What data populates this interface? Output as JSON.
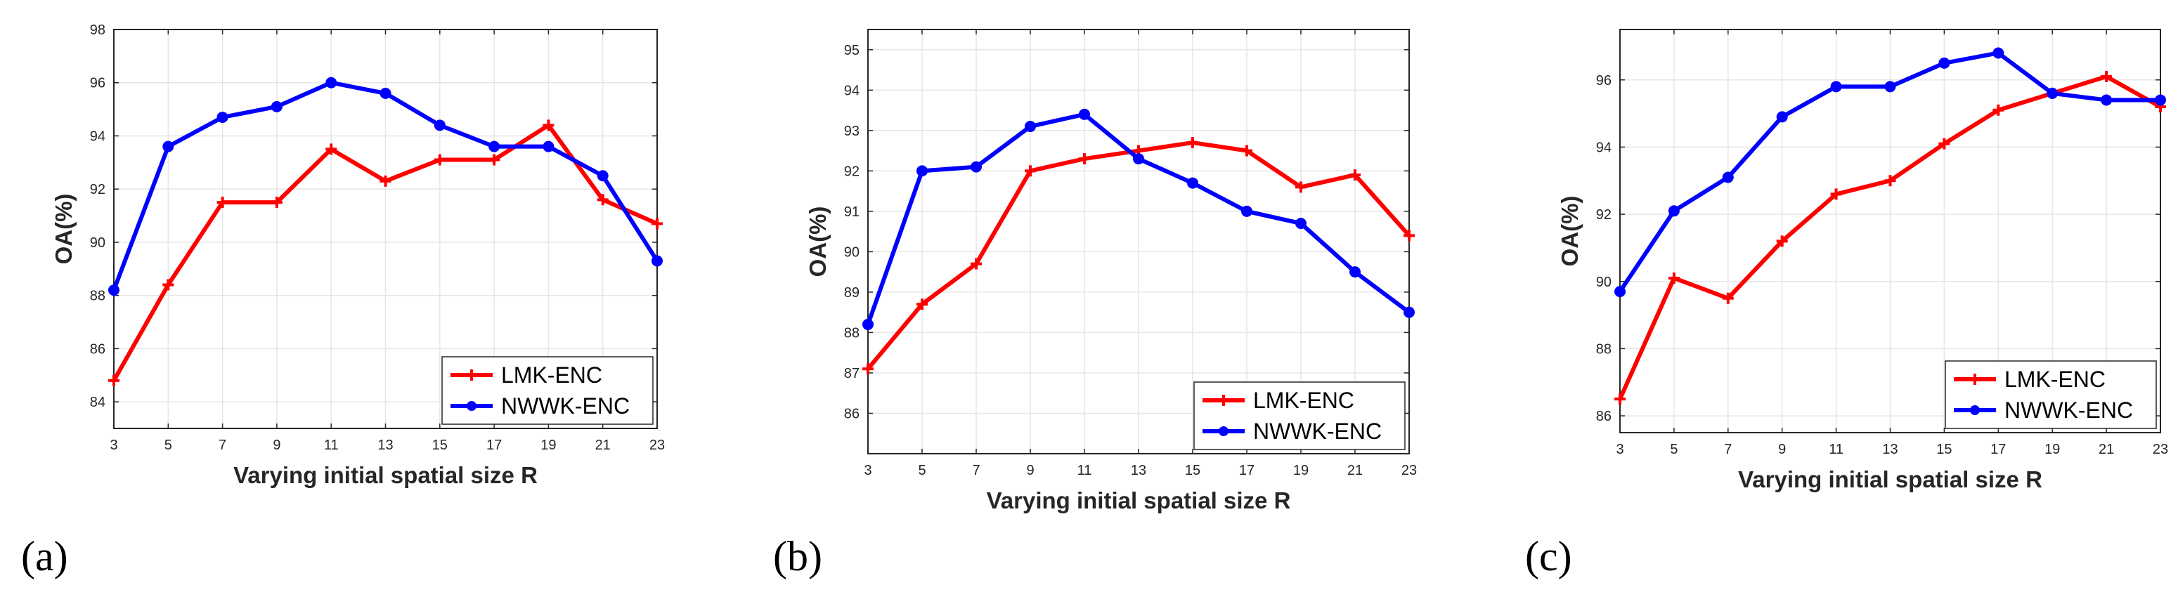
{
  "chart_data": [
    {
      "type": "line",
      "panel_label": "(a)",
      "xlabel": "Varying initial spatial size R",
      "ylabel": "OA(%)",
      "x": [
        3,
        5,
        7,
        9,
        11,
        13,
        15,
        17,
        19,
        21,
        23
      ],
      "xlim": [
        3,
        23
      ],
      "ylim": [
        83,
        98
      ],
      "yticks": [
        84,
        86,
        88,
        90,
        92,
        94,
        96,
        98
      ],
      "grid": true,
      "legend_position": "bottom-right",
      "series": [
        {
          "name": "LMK-ENC",
          "color": "#ff0000",
          "marker": "plus",
          "values": [
            84.8,
            88.4,
            91.5,
            91.5,
            93.5,
            92.3,
            93.1,
            93.1,
            94.4,
            91.6,
            90.7
          ]
        },
        {
          "name": "NWWK-ENC",
          "color": "#0000ff",
          "marker": "circle",
          "values": [
            88.2,
            93.6,
            94.7,
            95.1,
            96.0,
            95.6,
            94.4,
            93.6,
            93.6,
            92.5,
            89.3
          ]
        }
      ]
    },
    {
      "type": "line",
      "panel_label": "(b)",
      "xlabel": "Varying initial spatial size R",
      "ylabel": "OA(%)",
      "x": [
        3,
        5,
        7,
        9,
        11,
        13,
        15,
        17,
        19,
        21,
        23
      ],
      "xlim": [
        3,
        23
      ],
      "ylim": [
        85,
        95.5
      ],
      "yticks": [
        86,
        87,
        88,
        89,
        90,
        91,
        92,
        93,
        94,
        95
      ],
      "grid": true,
      "legend_position": "bottom-right",
      "series": [
        {
          "name": "LMK-ENC",
          "color": "#ff0000",
          "marker": "plus",
          "values": [
            87.1,
            88.7,
            89.7,
            92.0,
            92.3,
            92.5,
            92.7,
            92.5,
            91.6,
            91.9,
            90.4
          ]
        },
        {
          "name": "NWWK-ENC",
          "color": "#0000ff",
          "marker": "circle",
          "values": [
            88.2,
            92.0,
            92.1,
            93.1,
            93.4,
            92.3,
            91.7,
            91.0,
            90.7,
            89.5,
            88.5
          ]
        }
      ]
    },
    {
      "type": "line",
      "panel_label": "(c)",
      "xlabel": "Varying initial spatial size R",
      "ylabel": "OA(%)",
      "x": [
        3,
        5,
        7,
        9,
        11,
        13,
        15,
        17,
        19,
        21,
        23
      ],
      "xlim": [
        3,
        23
      ],
      "ylim": [
        85.5,
        97.5
      ],
      "yticks": [
        86,
        88,
        90,
        92,
        94,
        96
      ],
      "grid": true,
      "legend_position": "bottom-right",
      "series": [
        {
          "name": "LMK-ENC",
          "color": "#ff0000",
          "marker": "plus",
          "values": [
            86.5,
            90.1,
            89.5,
            91.2,
            92.6,
            93.0,
            94.1,
            95.1,
            95.6,
            96.1,
            95.2
          ]
        },
        {
          "name": "NWWK-ENC",
          "color": "#0000ff",
          "marker": "circle",
          "values": [
            89.7,
            92.1,
            93.1,
            94.9,
            95.8,
            95.8,
            96.5,
            96.8,
            95.6,
            95.4,
            95.4
          ]
        }
      ]
    }
  ]
}
